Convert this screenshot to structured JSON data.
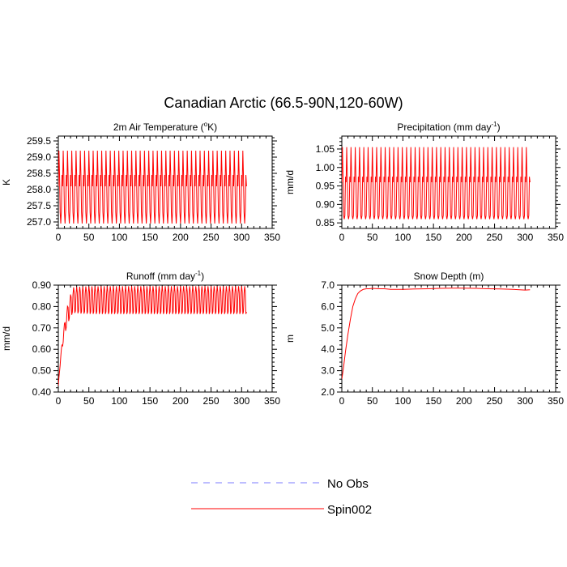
{
  "figure": {
    "title": "Canadian Arctic (66.5-90N,120-60W)",
    "legend": [
      {
        "label": "No Obs",
        "color": "#7b7bff",
        "dash": true
      },
      {
        "label": "Spin002",
        "color": "#ff0000",
        "dash": false
      }
    ]
  },
  "chart_data": [
    {
      "type": "line",
      "panel": "top-left",
      "title_main": "2m Air Temperature (",
      "title_sup": "o",
      "title_rest": "K)",
      "ylabel": "K",
      "xlim": [
        0,
        350
      ],
      "xticks": [
        0,
        50,
        100,
        150,
        200,
        250,
        300,
        350
      ],
      "ylim": [
        256.8,
        259.65
      ],
      "yticks": [
        257.0,
        257.5,
        258.0,
        258.5,
        259.0,
        259.5
      ],
      "ytick_labels": [
        "257.0",
        "257.5",
        "258.0",
        "258.5",
        "259.0",
        "259.5"
      ],
      "series": [
        {
          "color": "#ff0000",
          "pattern": "seasonal",
          "x_start": 0,
          "x_end": 308,
          "period": 7.0,
          "cycle": [
            258.1,
            259.2,
            258.45,
            257.3,
            256.95,
            257.35,
            258.45
          ]
        }
      ]
    },
    {
      "type": "line",
      "panel": "top-right",
      "title_main": "Precipitation (mm day",
      "title_sup": "-1",
      "title_rest": ")",
      "ylabel": "mm/d",
      "xlim": [
        0,
        350
      ],
      "xticks": [
        0,
        50,
        100,
        150,
        200,
        250,
        300,
        350
      ],
      "ylim": [
        0.835,
        1.085
      ],
      "yticks": [
        0.85,
        0.9,
        0.95,
        1.0,
        1.05
      ],
      "ytick_labels": [
        "0.85",
        "0.90",
        "0.95",
        "1.00",
        "1.05"
      ],
      "series": [
        {
          "color": "#ff0000",
          "pattern": "seasonal",
          "x_start": 0,
          "x_end": 308,
          "period": 7.0,
          "cycle": [
            0.96,
            1.055,
            0.975,
            0.87,
            0.86,
            0.87,
            0.975
          ]
        }
      ]
    },
    {
      "type": "line",
      "panel": "bottom-left",
      "title_main": "Runoff (mm day",
      "title_sup": "-1",
      "title_rest": ")",
      "ylabel": "mm/d",
      "xlim": [
        0,
        350
      ],
      "xticks": [
        0,
        50,
        100,
        150,
        200,
        250,
        300,
        350
      ],
      "ylim": [
        0.4,
        0.9
      ],
      "yticks": [
        0.4,
        0.5,
        0.6,
        0.7,
        0.8,
        0.9
      ],
      "ytick_labels": [
        "0.40",
        "0.50",
        "0.60",
        "0.70",
        "0.80",
        "0.90"
      ],
      "series": [
        {
          "color": "#ff0000",
          "pattern": "seasonal",
          "x_start": 0,
          "x_end": 308,
          "period": 5.0,
          "cycle": [
            0.895,
            0.87,
            0.765,
            0.775,
            0.86
          ],
          "spinup_start": 0.43,
          "spinup_tau": 12,
          "spinup_amp_start": 0.3
        }
      ]
    },
    {
      "type": "line",
      "panel": "bottom-right",
      "title_main": "Snow Depth (m)",
      "title_sup": "",
      "title_rest": "",
      "ylabel": "m",
      "xlim": [
        0,
        350
      ],
      "xticks": [
        0,
        50,
        100,
        150,
        200,
        250,
        300,
        350
      ],
      "ylim": [
        2.0,
        7.0
      ],
      "yticks": [
        2.0,
        3.0,
        4.0,
        5.0,
        6.0,
        7.0
      ],
      "ytick_labels": [
        "2.0",
        "3.0",
        "4.0",
        "5.0",
        "6.0",
        "7.0"
      ],
      "series": [
        {
          "color": "#ff0000",
          "pattern": "points",
          "x": [
            0,
            3,
            6,
            10,
            14,
            18,
            22,
            26,
            30,
            35,
            40,
            45,
            50,
            60,
            70,
            80,
            90,
            100,
            120,
            140,
            160,
            180,
            200,
            220,
            240,
            260,
            280,
            300,
            308
          ],
          "y": [
            2.6,
            3.2,
            3.9,
            4.7,
            5.4,
            6.0,
            6.35,
            6.6,
            6.72,
            6.8,
            6.83,
            6.83,
            6.85,
            6.83,
            6.83,
            6.8,
            6.8,
            6.8,
            6.82,
            6.83,
            6.85,
            6.86,
            6.86,
            6.85,
            6.83,
            6.82,
            6.8,
            6.77,
            6.78
          ]
        }
      ]
    }
  ]
}
